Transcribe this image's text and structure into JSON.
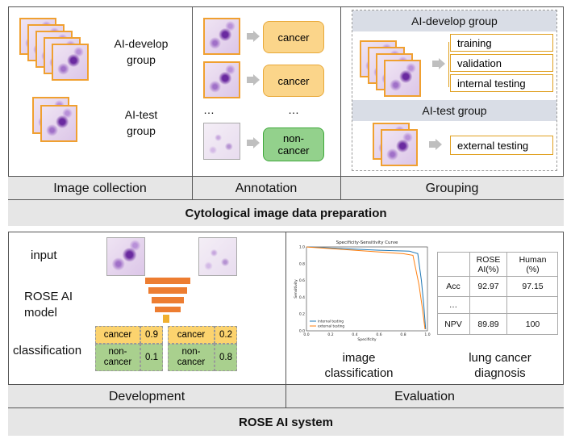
{
  "top": {
    "image_collection": {
      "label": "Image collection",
      "develop_group": "AI-develop group",
      "test_group": "AI-test group"
    },
    "annotation": {
      "label": "Annotation",
      "items": [
        "cancer",
        "cancer",
        "…",
        "non-cancer"
      ],
      "ellipsis_left": "…"
    },
    "grouping": {
      "label": "Grouping",
      "develop_header": "AI-develop group",
      "develop_items": [
        "training",
        "validation",
        "internal testing"
      ],
      "test_header": "AI-test group",
      "test_item": "external testing"
    },
    "footer": "Cytological image data preparation"
  },
  "bottom": {
    "development": {
      "label": "Development",
      "input": "input",
      "model": "ROSE AI model",
      "classification": "classification",
      "table_left": [
        [
          "cancer",
          "0.9"
        ],
        [
          "non-cancer",
          "0.1"
        ]
      ],
      "table_right": [
        [
          "cancer",
          "0.2"
        ],
        [
          "non-cancer",
          "0.8"
        ]
      ]
    },
    "evaluation": {
      "label": "Evaluation",
      "image_classification": "image classification",
      "lung_cancer_diagnosis": "lung cancer diagnosis",
      "table": {
        "headers": [
          "",
          "ROSE AI(%)",
          "Human (%)"
        ],
        "rows": [
          [
            "Acc",
            "92.97",
            "97.15"
          ],
          [
            "…",
            "",
            ""
          ],
          [
            "NPV",
            "89.89",
            "100"
          ]
        ]
      }
    },
    "footer": "ROSE AI system"
  },
  "chart_data": {
    "type": "line",
    "title": "Specificity-Sensitivity Curve",
    "xlabel": "Specificity",
    "ylabel": "Sensitivity",
    "xlim": [
      0,
      1.0
    ],
    "ylim": [
      0,
      1.0
    ],
    "x_ticks": [
      "0.0",
      "0.2",
      "0.4",
      "0.6",
      "0.8",
      "1.0"
    ],
    "y_ticks": [
      "0.0",
      "0.2",
      "0.4",
      "0.6",
      "0.8",
      "1.0"
    ],
    "legend": "bottom-left",
    "grid": false,
    "series": [
      {
        "name": "internal testing",
        "color": "#1f77b4",
        "x": [
          0.0,
          0.3,
          0.6,
          0.85,
          0.92,
          0.95,
          0.97,
          0.985
        ],
        "y": [
          1.0,
          0.98,
          0.96,
          0.95,
          0.92,
          0.6,
          0.3,
          0.02
        ]
      },
      {
        "name": "external testing",
        "color": "#ff7f0e",
        "x": [
          0.0,
          0.3,
          0.6,
          0.8,
          0.88,
          0.93,
          0.96,
          0.98
        ],
        "y": [
          1.0,
          0.97,
          0.94,
          0.92,
          0.9,
          0.55,
          0.25,
          0.02
        ]
      }
    ]
  }
}
